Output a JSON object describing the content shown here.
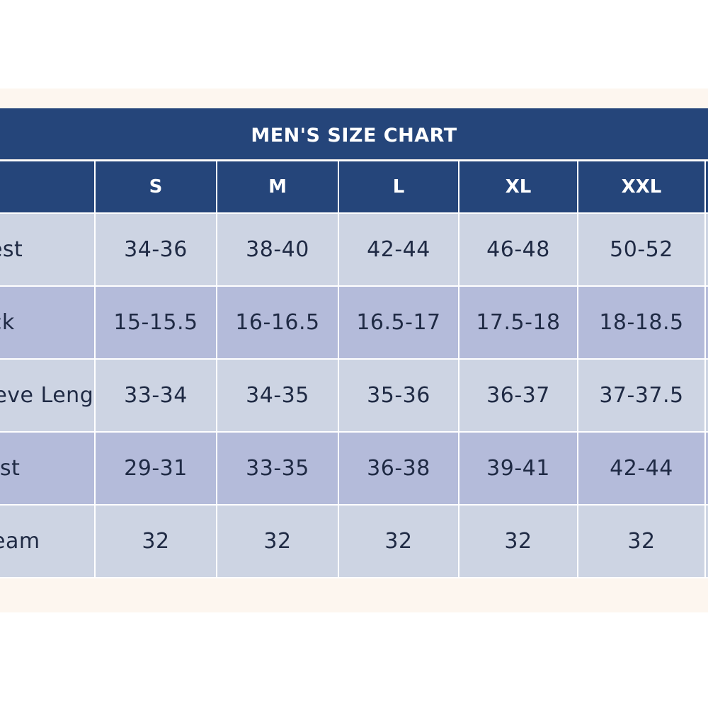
{
  "chart": {
    "title": "MEN'S SIZE CHART",
    "columns": [
      "S",
      "M",
      "L",
      "XL",
      "XXL"
    ],
    "rows": [
      {
        "label": "Chest",
        "values": [
          "34-36",
          "38-40",
          "42-44",
          "46-48",
          "50-52"
        ]
      },
      {
        "label": "Neck",
        "values": [
          "15-15.5",
          "16-16.5",
          "16.5-17",
          "17.5-18",
          "18-18.5"
        ]
      },
      {
        "label": "Sleeve Length",
        "values": [
          "33-34",
          "34-35",
          "35-36",
          "36-37",
          "37-37.5"
        ]
      },
      {
        "label": "Waist",
        "values": [
          "29-31",
          "33-35",
          "36-38",
          "39-41",
          "42-44"
        ]
      },
      {
        "label": "Inseam",
        "values": [
          "32",
          "32",
          "32",
          "32",
          "32"
        ]
      }
    ]
  },
  "colors": {
    "header": "#25457a",
    "row_light": "#cdd4e3",
    "row_dark": "#b4bbda",
    "text": "#1f2a44",
    "band": "#fdf6ef"
  }
}
